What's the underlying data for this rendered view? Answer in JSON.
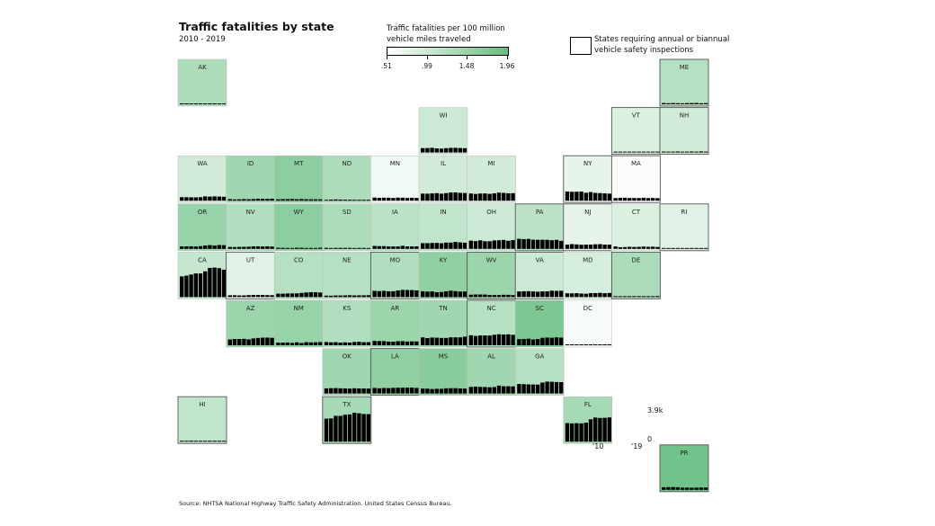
{
  "chart_data": {
    "type": "bar",
    "title": "Traffic fatalities by state",
    "subtitle": "2010 - 2019",
    "legend": {
      "title_line1": "Traffic fatalities per 100 million",
      "title_line2": "vehicle miles traveled",
      "ticks": [
        ".51",
        ".99",
        "1.48",
        "1.96"
      ],
      "min": 0.51,
      "max": 1.96,
      "color_low": "#ffffff",
      "color_high": "#66be7f"
    },
    "inspection_note_line1": "States requiring annual or biannual",
    "inspection_note_line2": "vehicle safety inspections",
    "x_start_label": "'10",
    "x_end_label": "'19",
    "y_max_label": "3.9k",
    "y_min_label": "0",
    "ylim": [
      0,
      3900
    ],
    "source": "Source: NHTSA National Highway Traffic Safety Administration. United States Census Bureau.",
    "states": [
      {
        "abbr": "AK",
        "col": 0,
        "row": 0,
        "rate": 1.3,
        "inspect": false,
        "values": [
          56,
          72,
          59,
          51,
          73,
          65,
          84,
          79,
          81,
          67
        ]
      },
      {
        "abbr": "ME",
        "col": 10,
        "row": 0,
        "rate": 1.2,
        "inspect": true,
        "values": [
          161,
          136,
          164,
          144,
          131,
          156,
          160,
          173,
          137,
          157
        ]
      },
      {
        "abbr": "WI",
        "col": 5,
        "row": 1,
        "rate": 1.0,
        "inspect": false,
        "values": [
          572,
          582,
          615,
          543,
          507,
          566,
          607,
          613,
          588,
          566
        ]
      },
      {
        "abbr": "VT",
        "col": 9,
        "row": 1,
        "rate": 0.85,
        "inspect": true,
        "values": [
          71,
          55,
          77,
          69,
          44,
          57,
          62,
          69,
          68,
          47
        ]
      },
      {
        "abbr": "NH",
        "col": 10,
        "row": 1,
        "rate": 0.95,
        "inspect": true,
        "values": [
          128,
          90,
          108,
          135,
          95,
          114,
          136,
          102,
          147,
          101
        ]
      },
      {
        "abbr": "WA",
        "col": 0,
        "row": 2,
        "rate": 0.95,
        "inspect": false,
        "values": [
          460,
          454,
          444,
          436,
          462,
          568,
          537,
          565,
          546,
          519
        ]
      },
      {
        "abbr": "ID",
        "col": 1,
        "row": 2,
        "rate": 1.4,
        "inspect": false,
        "values": [
          209,
          167,
          184,
          214,
          186,
          216,
          253,
          245,
          231,
          267
        ]
      },
      {
        "abbr": "MT",
        "col": 2,
        "row": 2,
        "rate": 1.6,
        "inspect": false,
        "values": [
          189,
          209,
          205,
          229,
          192,
          224,
          190,
          186,
          182,
          184
        ]
      },
      {
        "abbr": "ND",
        "col": 3,
        "row": 2,
        "rate": 1.3,
        "inspect": false,
        "values": [
          105,
          148,
          170,
          148,
          135,
          131,
          113,
          116,
          105,
          100
        ]
      },
      {
        "abbr": "MN",
        "col": 4,
        "row": 2,
        "rate": 0.65,
        "inspect": false,
        "values": [
          411,
          368,
          395,
          387,
          361,
          411,
          392,
          358,
          381,
          364
        ]
      },
      {
        "abbr": "IL",
        "col": 5,
        "row": 2,
        "rate": 0.95,
        "inspect": false,
        "values": [
          927,
          918,
          956,
          991,
          924,
          998,
          1078,
          1090,
          1031,
          1009
        ]
      },
      {
        "abbr": "MI",
        "col": 6,
        "row": 2,
        "rate": 0.95,
        "inspect": false,
        "values": [
          942,
          889,
          938,
          951,
          901,
          963,
          1064,
          1028,
          974,
          985
        ]
      },
      {
        "abbr": "NY",
        "col": 8,
        "row": 2,
        "rate": 0.75,
        "inspect": true,
        "values": [
          1201,
          1171,
          1180,
          1199,
          1041,
          1136,
          1025,
          999,
          964,
          931
        ]
      },
      {
        "abbr": "MA",
        "col": 9,
        "row": 2,
        "rate": 0.55,
        "inspect": true,
        "values": [
          347,
          374,
          383,
          351,
          354,
          345,
          387,
          343,
          360,
          334
        ]
      },
      {
        "abbr": "OR",
        "col": 0,
        "row": 3,
        "rate": 1.5,
        "inspect": false,
        "values": [
          317,
          331,
          337,
          313,
          357,
          447,
          498,
          439,
          506,
          489
        ]
      },
      {
        "abbr": "NV",
        "col": 1,
        "row": 3,
        "rate": 1.25,
        "inspect": false,
        "values": [
          257,
          246,
          261,
          266,
          290,
          326,
          329,
          311,
          330,
          304
        ]
      },
      {
        "abbr": "WY",
        "col": 2,
        "row": 3,
        "rate": 1.6,
        "inspect": false,
        "values": [
          155,
          135,
          123,
          87,
          150,
          145,
          112,
          123,
          111,
          147
        ]
      },
      {
        "abbr": "SD",
        "col": 3,
        "row": 3,
        "rate": 1.3,
        "inspect": false,
        "values": [
          140,
          111,
          133,
          135,
          136,
          133,
          116,
          129,
          130,
          102
        ]
      },
      {
        "abbr": "IA",
        "col": 4,
        "row": 3,
        "rate": 1.15,
        "inspect": false,
        "values": [
          390,
          360,
          365,
          317,
          321,
          320,
          404,
          330,
          318,
          336
        ]
      },
      {
        "abbr": "IN",
        "col": 5,
        "row": 3,
        "rate": 1.1,
        "inspect": false,
        "values": [
          754,
          751,
          781,
          784,
          746,
          821,
          829,
          914,
          858,
          809
        ]
      },
      {
        "abbr": "OH",
        "col": 6,
        "row": 3,
        "rate": 1.0,
        "inspect": false,
        "values": [
          1080,
          1016,
          1123,
          1006,
          1006,
          1110,
          1132,
          1179,
          1068,
          1153
        ]
      },
      {
        "abbr": "PA",
        "col": 7,
        "row": 3,
        "rate": 1.15,
        "inspect": true,
        "values": [
          1324,
          1286,
          1310,
          1208,
          1195,
          1200,
          1188,
          1137,
          1190,
          1059
        ]
      },
      {
        "abbr": "NJ",
        "col": 8,
        "row": 3,
        "rate": 0.75,
        "inspect": true,
        "values": [
          556,
          627,
          589,
          542,
          556,
          562,
          602,
          624,
          564,
          559
        ]
      },
      {
        "abbr": "CT",
        "col": 9,
        "row": 3,
        "rate": 0.85,
        "inspect": false,
        "values": [
          320,
          221,
          236,
          276,
          248,
          266,
          304,
          278,
          294,
          249
        ]
      },
      {
        "abbr": "RI",
        "col": 10,
        "row": 3,
        "rate": 0.8,
        "inspect": true,
        "values": [
          67,
          66,
          64,
          65,
          51,
          45,
          51,
          84,
          59,
          57
        ]
      },
      {
        "abbr": "CA",
        "col": 0,
        "row": 4,
        "rate": 1.05,
        "inspect": false,
        "values": [
          2720,
          2816,
          2966,
          3107,
          3102,
          3387,
          3837,
          3884,
          3798,
          3606
        ]
      },
      {
        "abbr": "UT",
        "col": 1,
        "row": 4,
        "rate": 0.8,
        "inspect": true,
        "values": [
          236,
          243,
          217,
          220,
          256,
          276,
          281,
          273,
          260,
          248
        ]
      },
      {
        "abbr": "CO",
        "col": 2,
        "row": 4,
        "rate": 1.2,
        "inspect": false,
        "values": [
          450,
          447,
          474,
          481,
          488,
          546,
          608,
          648,
          632,
          596
        ]
      },
      {
        "abbr": "NE",
        "col": 3,
        "row": 4,
        "rate": 1.2,
        "inspect": false,
        "values": [
          190,
          181,
          212,
          211,
          225,
          246,
          218,
          228,
          230,
          248
        ]
      },
      {
        "abbr": "MO",
        "col": 4,
        "row": 4,
        "rate": 1.25,
        "inspect": true,
        "values": [
          819,
          786,
          826,
          757,
          766,
          869,
          947,
          932,
          921,
          880
        ]
      },
      {
        "abbr": "KY",
        "col": 5,
        "row": 4,
        "rate": 1.55,
        "inspect": false,
        "values": [
          760,
          721,
          746,
          638,
          672,
          761,
          834,
          782,
          724,
          732
        ]
      },
      {
        "abbr": "WV",
        "col": 6,
        "row": 4,
        "rate": 1.45,
        "inspect": true,
        "values": [
          315,
          338,
          339,
          332,
          272,
          268,
          269,
          303,
          294,
          260
        ]
      },
      {
        "abbr": "VA",
        "col": 7,
        "row": 4,
        "rate": 1.0,
        "inspect": true,
        "values": [
          740,
          764,
          777,
          741,
          703,
          753,
          760,
          839,
          820,
          831
        ]
      },
      {
        "abbr": "MD",
        "col": 8,
        "row": 4,
        "rate": 0.9,
        "inspect": false,
        "values": [
          496,
          485,
          511,
          465,
          443,
          520,
          522,
          558,
          512,
          535
        ]
      },
      {
        "abbr": "DE",
        "col": 9,
        "row": 4,
        "rate": 1.3,
        "inspect": true,
        "values": [
          101,
          99,
          114,
          101,
          124,
          126,
          119,
          119,
          111,
          132
        ]
      },
      {
        "abbr": "AZ",
        "col": 1,
        "row": 5,
        "rate": 1.45,
        "inspect": false,
        "values": [
          762,
          825,
          825,
          849,
          774,
          897,
          962,
          1000,
          1010,
          981
        ]
      },
      {
        "abbr": "NM",
        "col": 2,
        "row": 5,
        "rate": 1.5,
        "inspect": false,
        "values": [
          346,
          350,
          365,
          310,
          386,
          298,
          402,
          379,
          392,
          424
        ]
      },
      {
        "abbr": "KS",
        "col": 3,
        "row": 5,
        "rate": 1.25,
        "inspect": false,
        "values": [
          431,
          386,
          405,
          350,
          385,
          355,
          429,
          461,
          404,
          411
        ]
      },
      {
        "abbr": "AR",
        "col": 4,
        "row": 5,
        "rate": 1.45,
        "inspect": false,
        "values": [
          571,
          551,
          552,
          483,
          470,
          531,
          545,
          493,
          516,
          505
        ]
      },
      {
        "abbr": "TN",
        "col": 5,
        "row": 5,
        "rate": 1.4,
        "inspect": false,
        "values": [
          1032,
          946,
          1015,
          995,
          963,
          962,
          1041,
          1040,
          1040,
          1135
        ]
      },
      {
        "abbr": "NC",
        "col": 6,
        "row": 5,
        "rate": 1.2,
        "inspect": true,
        "values": [
          1320,
          1227,
          1292,
          1290,
          1284,
          1379,
          1450,
          1412,
          1437,
          1373
        ]
      },
      {
        "abbr": "SC",
        "col": 7,
        "row": 5,
        "rate": 1.75,
        "inspect": false,
        "values": [
          809,
          828,
          863,
          767,
          824,
          979,
          1015,
          988,
          1036,
          1006
        ]
      },
      {
        "abbr": "DC",
        "col": 8,
        "row": 5,
        "rate": 0.6,
        "inspect": false,
        "values": [
          24,
          27,
          15,
          20,
          23,
          27,
          28,
          31,
          31,
          23
        ]
      },
      {
        "abbr": "OK",
        "col": 3,
        "row": 6,
        "rate": 1.4,
        "inspect": false,
        "values": [
          668,
          696,
          708,
          678,
          669,
          643,
          683,
          657,
          655,
          640
        ]
      },
      {
        "abbr": "LA",
        "col": 4,
        "row": 6,
        "rate": 1.55,
        "inspect": true,
        "values": [
          721,
          680,
          722,
          703,
          740,
          752,
          757,
          766,
          768,
          727
        ]
      },
      {
        "abbr": "MS",
        "col": 5,
        "row": 6,
        "rate": 1.65,
        "inspect": false,
        "values": [
          641,
          630,
          582,
          613,
          607,
          677,
          690,
          690,
          664,
          643
        ]
      },
      {
        "abbr": "AL",
        "col": 6,
        "row": 6,
        "rate": 1.4,
        "inspect": false,
        "values": [
          862,
          895,
          865,
          852,
          820,
          849,
          1038,
          948,
          953,
          930
        ]
      },
      {
        "abbr": "GA",
        "col": 7,
        "row": 6,
        "rate": 1.2,
        "inspect": false,
        "values": [
          1247,
          1226,
          1192,
          1179,
          1164,
          1430,
          1556,
          1540,
          1505,
          1491
        ]
      },
      {
        "abbr": "HI",
        "col": 0,
        "row": 7,
        "rate": 1.1,
        "inspect": true,
        "values": [
          113,
          100,
          126,
          102,
          95,
          94,
          120,
          107,
          117,
          108
        ]
      },
      {
        "abbr": "TX",
        "col": 3,
        "row": 7,
        "rate": 1.35,
        "inspect": true,
        "values": [
          3023,
          3054,
          3398,
          3389,
          3536,
          3582,
          3797,
          3727,
          3642,
          3615
        ]
      },
      {
        "abbr": "FL",
        "col": 8,
        "row": 7,
        "rate": 1.35,
        "inspect": false,
        "values": [
          2444,
          2400,
          2431,
          2407,
          2494,
          2938,
          3174,
          3112,
          3133,
          3183
        ]
      },
      {
        "abbr": "PR",
        "col": 10,
        "row": 8,
        "rate": 1.85,
        "inspect": true,
        "values": [
          340,
          361,
          366,
          344,
          289,
          292,
          279,
          290,
          307,
          304
        ]
      }
    ]
  }
}
